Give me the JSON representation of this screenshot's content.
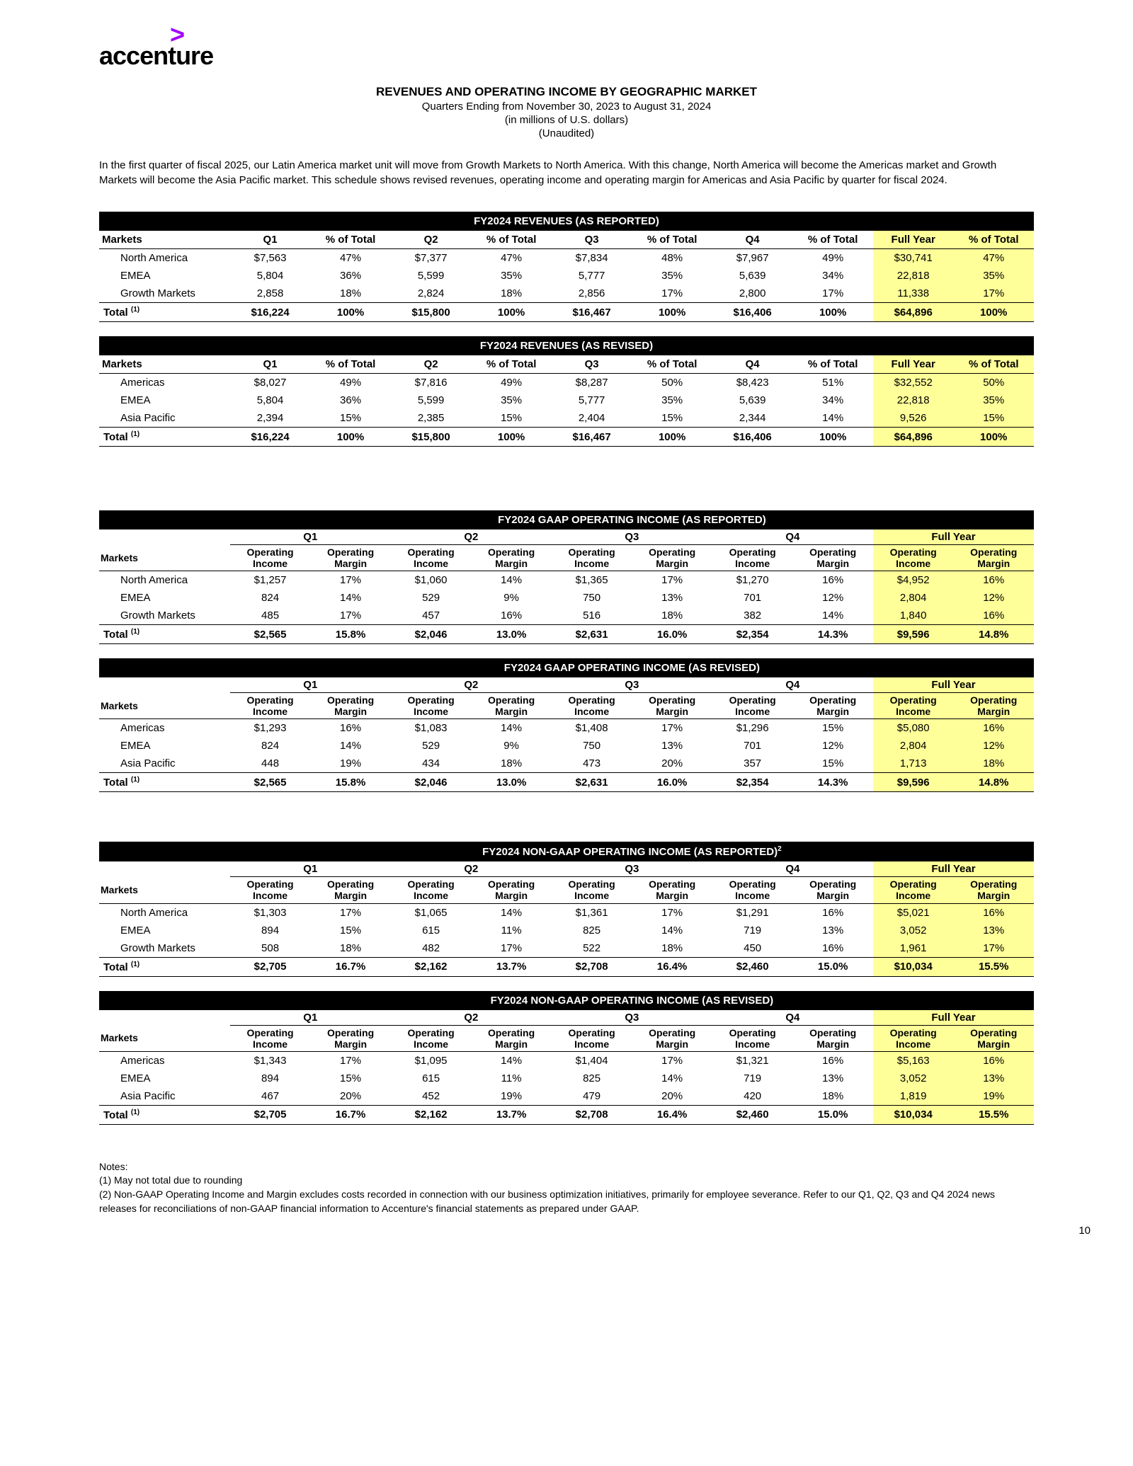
{
  "logo_text": "accenture",
  "title": "REVENUES AND OPERATING INCOME BY GEOGRAPHIC MARKET",
  "subtitle1": "Quarters Ending from November 30, 2023 to August 31, 2024",
  "subtitle2": "(in millions of U.S. dollars)",
  "subtitle3": "(Unaudited)",
  "intro": "In the first quarter of fiscal 2025, our Latin America market unit will move from Growth Markets to North America. With this change, North America will become the Americas market and Growth Markets will become the Asia Pacific market. This schedule shows revised revenues, operating income and operating margin for Americas and Asia Pacific by quarter for fiscal 2024.",
  "colors": {
    "black": "#000000",
    "white": "#ffffff",
    "highlight": "#ffff99",
    "accent": "#a100ff"
  },
  "rev_tables": [
    {
      "title": "FY2024 REVENUES (AS REPORTED)",
      "rows": [
        {
          "m": "North America",
          "q1": "$7,563",
          "p1": "47%",
          "q2": "$7,377",
          "p2": "47%",
          "q3": "$7,834",
          "p3": "48%",
          "q4": "$7,967",
          "p4": "49%",
          "fy": "$30,741",
          "pfy": "47%"
        },
        {
          "m": "EMEA",
          "q1": "5,804",
          "p1": "36%",
          "q2": "5,599",
          "p2": "35%",
          "q3": "5,777",
          "p3": "35%",
          "q4": "5,639",
          "p4": "34%",
          "fy": "22,818",
          "pfy": "35%"
        },
        {
          "m": "Growth Markets",
          "q1": "2,858",
          "p1": "18%",
          "q2": "2,824",
          "p2": "18%",
          "q3": "2,856",
          "p3": "17%",
          "q4": "2,800",
          "p4": "17%",
          "fy": "11,338",
          "pfy": "17%"
        }
      ],
      "total": {
        "m": "Total",
        "q1": "$16,224",
        "p1": "100%",
        "q2": "$15,800",
        "p2": "100%",
        "q3": "$16,467",
        "p3": "100%",
        "q4": "$16,406",
        "p4": "100%",
        "fy": "$64,896",
        "pfy": "100%"
      }
    },
    {
      "title": "FY2024 REVENUES (AS REVISED)",
      "rows": [
        {
          "m": "Americas",
          "q1": "$8,027",
          "p1": "49%",
          "q2": "$7,816",
          "p2": "49%",
          "q3": "$8,287",
          "p3": "50%",
          "q4": "$8,423",
          "p4": "51%",
          "fy": "$32,552",
          "pfy": "50%"
        },
        {
          "m": "EMEA",
          "q1": "5,804",
          "p1": "36%",
          "q2": "5,599",
          "p2": "35%",
          "q3": "5,777",
          "p3": "35%",
          "q4": "5,639",
          "p4": "34%",
          "fy": "22,818",
          "pfy": "35%"
        },
        {
          "m": "Asia Pacific",
          "q1": "2,394",
          "p1": "15%",
          "q2": "2,385",
          "p2": "15%",
          "q3": "2,404",
          "p3": "15%",
          "q4": "2,344",
          "p4": "14%",
          "fy": "9,526",
          "pfy": "15%"
        }
      ],
      "total": {
        "m": "Total",
        "q1": "$16,224",
        "p1": "100%",
        "q2": "$15,800",
        "p2": "100%",
        "q3": "$16,467",
        "p3": "100%",
        "q4": "$16,406",
        "p4": "100%",
        "fy": "$64,896",
        "pfy": "100%"
      }
    }
  ],
  "op_tables": [
    {
      "title": "FY2024 GAAP OPERATING INCOME (AS REPORTED)",
      "sup": "",
      "rows": [
        {
          "m": "North America",
          "v": [
            "$1,257",
            "17%",
            "$1,060",
            "14%",
            "$1,365",
            "17%",
            "$1,270",
            "16%",
            "$4,952",
            "16%"
          ]
        },
        {
          "m": "EMEA",
          "v": [
            "824",
            "14%",
            "529",
            "9%",
            "750",
            "13%",
            "701",
            "12%",
            "2,804",
            "12%"
          ]
        },
        {
          "m": "Growth Markets",
          "v": [
            "485",
            "17%",
            "457",
            "16%",
            "516",
            "18%",
            "382",
            "14%",
            "1,840",
            "16%"
          ]
        }
      ],
      "total": {
        "m": "Total",
        "v": [
          "$2,565",
          "15.8%",
          "$2,046",
          "13.0%",
          "$2,631",
          "16.0%",
          "$2,354",
          "14.3%",
          "$9,596",
          "14.8%"
        ]
      }
    },
    {
      "title": "FY2024 GAAP OPERATING INCOME (AS REVISED)",
      "sup": "",
      "rows": [
        {
          "m": "Americas",
          "v": [
            "$1,293",
            "16%",
            "$1,083",
            "14%",
            "$1,408",
            "17%",
            "$1,296",
            "15%",
            "$5,080",
            "16%"
          ]
        },
        {
          "m": "EMEA",
          "v": [
            "824",
            "14%",
            "529",
            "9%",
            "750",
            "13%",
            "701",
            "12%",
            "2,804",
            "12%"
          ]
        },
        {
          "m": "Asia Pacific",
          "v": [
            "448",
            "19%",
            "434",
            "18%",
            "473",
            "20%",
            "357",
            "15%",
            "1,713",
            "18%"
          ]
        }
      ],
      "total": {
        "m": "Total",
        "v": [
          "$2,565",
          "15.8%",
          "$2,046",
          "13.0%",
          "$2,631",
          "16.0%",
          "$2,354",
          "14.3%",
          "$9,596",
          "14.8%"
        ]
      }
    },
    {
      "title": "FY2024 NON-GAAP OPERATING INCOME (AS REPORTED)",
      "sup": "2",
      "rows": [
        {
          "m": "North America",
          "v": [
            "$1,303",
            "17%",
            "$1,065",
            "14%",
            "$1,361",
            "17%",
            "$1,291",
            "16%",
            "$5,021",
            "16%"
          ]
        },
        {
          "m": "EMEA",
          "v": [
            "894",
            "15%",
            "615",
            "11%",
            "825",
            "14%",
            "719",
            "13%",
            "3,052",
            "13%"
          ]
        },
        {
          "m": "Growth Markets",
          "v": [
            "508",
            "18%",
            "482",
            "17%",
            "522",
            "18%",
            "450",
            "16%",
            "1,961",
            "17%"
          ]
        }
      ],
      "total": {
        "m": "Total",
        "v": [
          "$2,705",
          "16.7%",
          "$2,162",
          "13.7%",
          "$2,708",
          "16.4%",
          "$2,460",
          "15.0%",
          "$10,034",
          "15.5%"
        ]
      }
    },
    {
      "title": "FY2024 NON-GAAP OPERATING INCOME (AS REVISED)",
      "sup": "",
      "rows": [
        {
          "m": "Americas",
          "v": [
            "$1,343",
            "17%",
            "$1,095",
            "14%",
            "$1,404",
            "17%",
            "$1,321",
            "16%",
            "$5,163",
            "16%"
          ]
        },
        {
          "m": "EMEA",
          "v": [
            "894",
            "15%",
            "615",
            "11%",
            "825",
            "14%",
            "719",
            "13%",
            "3,052",
            "13%"
          ]
        },
        {
          "m": "Asia Pacific",
          "v": [
            "467",
            "20%",
            "452",
            "19%",
            "479",
            "20%",
            "420",
            "18%",
            "1,819",
            "19%"
          ]
        }
      ],
      "total": {
        "m": "Total",
        "v": [
          "$2,705",
          "16.7%",
          "$2,162",
          "13.7%",
          "$2,708",
          "16.4%",
          "$2,460",
          "15.0%",
          "$10,034",
          "15.5%"
        ]
      }
    }
  ],
  "headers": {
    "markets": "Markets",
    "q1": "Q1",
    "q2": "Q2",
    "q3": "Q3",
    "q4": "Q4",
    "pct": "% of Total",
    "fy": "Full Year",
    "oi": "Operating Income",
    "om": "Operating Margin"
  },
  "notes_title": "Notes:",
  "note1": "(1) May not total due to rounding",
  "note2": "(2) Non-GAAP Operating Income and Margin excludes costs recorded in connection with our business optimization initiatives, primarily for employee severance.  Refer to our Q1, Q2, Q3 and Q4 2024 news releases for reconciliations of non-GAAP financial information to Accenture's financial statements as prepared under GAAP.",
  "page_number": "10"
}
